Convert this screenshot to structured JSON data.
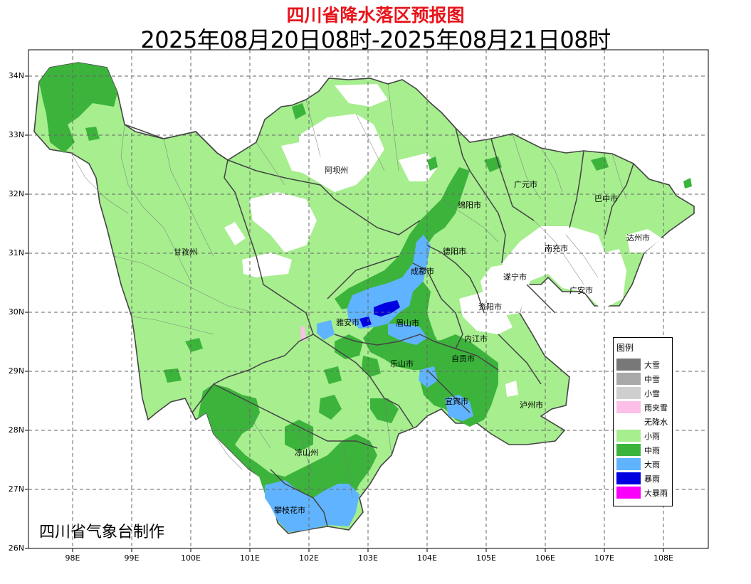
{
  "title": "四川省降水落区预报图",
  "subtitle": "2025年08月20日08时-2025年08月21日08时",
  "credit": "四川省气象台制作",
  "axes": {
    "lat_labels": [
      "34N",
      "33N",
      "32N",
      "31N",
      "30N",
      "29N",
      "28N",
      "27N",
      "26N"
    ],
    "lon_labels": [
      "98E",
      "99E",
      "100E",
      "101E",
      "102E",
      "103E",
      "104E",
      "105E",
      "106E",
      "107E",
      "108E"
    ]
  },
  "cities": [
    "阿坝州",
    "广元市",
    "巴中市",
    "绵阳市",
    "达州市",
    "甘孜州",
    "德阳市",
    "南充市",
    "成都市",
    "遂宁市",
    "广安市",
    "资阳市",
    "雅安市",
    "眉山市",
    "内江市",
    "乐山市",
    "自贡市",
    "宜宾市",
    "泸州市",
    "凉山州",
    "攀枝花市"
  ],
  "legend": {
    "title": "图例",
    "items": [
      {
        "label": "大雪",
        "color": "#787878"
      },
      {
        "label": "中雪",
        "color": "#a8a8a8"
      },
      {
        "label": "小雪",
        "color": "#cfcfcf"
      },
      {
        "label": "雨夹雪",
        "color": "#fbbfe8"
      },
      {
        "label": "无降水",
        "color": "#ffffff"
      },
      {
        "label": "小雨",
        "color": "#a6ee8e"
      },
      {
        "label": "中雨",
        "color": "#3cb43c"
      },
      {
        "label": "大雨",
        "color": "#60b4ff"
      },
      {
        "label": "暴雨",
        "color": "#0000e1"
      },
      {
        "label": "大暴雨",
        "color": "#fa00fa"
      }
    ]
  }
}
